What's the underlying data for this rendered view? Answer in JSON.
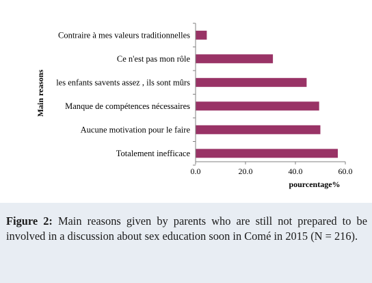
{
  "caption": {
    "label": "Figure 2:",
    "text": "Main reasons given by parents who are still not prepared to be involved in a discussion about sex education soon in Comé in 2015 (N = 216)."
  },
  "chart_data": {
    "type": "bar",
    "orientation": "horizontal",
    "categories": [
      "Contraire à mes valeurs traditionnelles",
      "Ce n'est pas mon rôle",
      "les enfants savents assez , ils sont mûrs",
      "Manque de compétences nécessaires",
      "Aucune motivation pour le faire",
      "Totalement inefficace"
    ],
    "values": [
      4.5,
      31.0,
      44.5,
      49.5,
      50.0,
      57.0
    ],
    "xlabel": "pourcentage%",
    "ylabel": "Main reasons",
    "xlim": [
      0,
      60
    ],
    "xticks": [
      "0.0",
      "20.0",
      "40.0",
      "60.0"
    ],
    "bar_color": "#993366",
    "grid": false,
    "legend": "none"
  }
}
